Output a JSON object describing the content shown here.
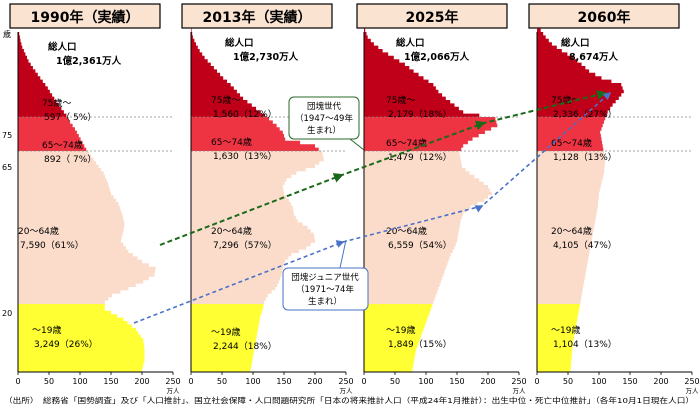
{
  "axis": {
    "age_unit": "歳",
    "age_ticks": [
      "75",
      "65",
      "20"
    ],
    "x_unit": "万人"
  },
  "callouts": {
    "boomer": [
      "団塊世代",
      "（1947～49年",
      "生まれ）"
    ],
    "junior": [
      "団塊ジュニア世代",
      "（1971～74年",
      "生まれ）"
    ]
  },
  "source": "（出所）　総務省「国勢調査」及び「人口推計」、国立社会保障・人口問題研究所「日本の将来推計人口（平成24年1月推計）：出生中位・死亡中位推計」（各年10月1日現在人口）",
  "colors": {
    "age_0_19": "#ffff33",
    "age_20_64": "#fbdccb",
    "age_65_74": "#ee3342",
    "age_75_plus": "#c00018",
    "arrow_boomer": "#1a6a1a",
    "arrow_junior": "#4a72c8",
    "title_bg": "#fbe3d2"
  },
  "chart_data": [
    {
      "type": "area",
      "title": "1990年（実績）",
      "xlabel": "万人",
      "ylabel": "歳",
      "xlim": [
        0,
        250
      ],
      "x_ticks": [
        "0",
        "50",
        "100",
        "150",
        "200",
        "250"
      ],
      "total_label": "総人口",
      "total_value": "1億2,361万人",
      "segments": [
        {
          "name": "75歳～",
          "value": "597（ 5%）"
        },
        {
          "name": "65～74歳",
          "value": "892（ 7%）"
        },
        {
          "name": "20～64歳",
          "value": "7,590（61%）"
        },
        {
          "name": "～19歳",
          "value": "3,249（26%）"
        }
      ]
    },
    {
      "type": "area",
      "title": "2013年（実績）",
      "xlabel": "万人",
      "ylabel": "歳",
      "xlim": [
        0,
        250
      ],
      "x_ticks": [
        "0",
        "50",
        "100",
        "150",
        "200",
        "250"
      ],
      "total_label": "総人口",
      "total_value": "1億2,730万人",
      "segments": [
        {
          "name": "75歳～",
          "value": "1,560（12%）"
        },
        {
          "name": "65～74歳",
          "value": "1,630（13%）"
        },
        {
          "name": "20～64歳",
          "value": "7,296（57%）"
        },
        {
          "name": "～19歳",
          "value": "2,244（18%）"
        }
      ]
    },
    {
      "type": "area",
      "title": "2025年",
      "xlabel": "万人",
      "ylabel": "歳",
      "xlim": [
        0,
        250
      ],
      "x_ticks": [
        "0",
        "50",
        "100",
        "150",
        "200",
        "250"
      ],
      "total_label": "総人口",
      "total_value": "1億2,066万人",
      "segments": [
        {
          "name": "75歳～",
          "value": "2,179（18%）"
        },
        {
          "name": "65～74歳",
          "value": "1,479（12%）"
        },
        {
          "name": "20～64歳",
          "value": "6,559（54%）"
        },
        {
          "name": "～19歳",
          "value": "1,849（15%）"
        }
      ]
    },
    {
      "type": "area",
      "title": "2060年",
      "xlabel": "万人",
      "ylabel": "歳",
      "xlim": [
        0,
        250
      ],
      "x_ticks": [
        "0",
        "50",
        "100",
        "150",
        "200",
        "250"
      ],
      "total_label": "総人口",
      "total_value": "8,674万人",
      "segments": [
        {
          "name": "75歳～",
          "value": "2,336（27%）"
        },
        {
          "name": "65～74歳",
          "value": "1,128（13%）"
        },
        {
          "name": "20～64歳",
          "value": "4,105（47%）"
        },
        {
          "name": "～19歳",
          "value": "1,104（13%）"
        }
      ]
    }
  ]
}
